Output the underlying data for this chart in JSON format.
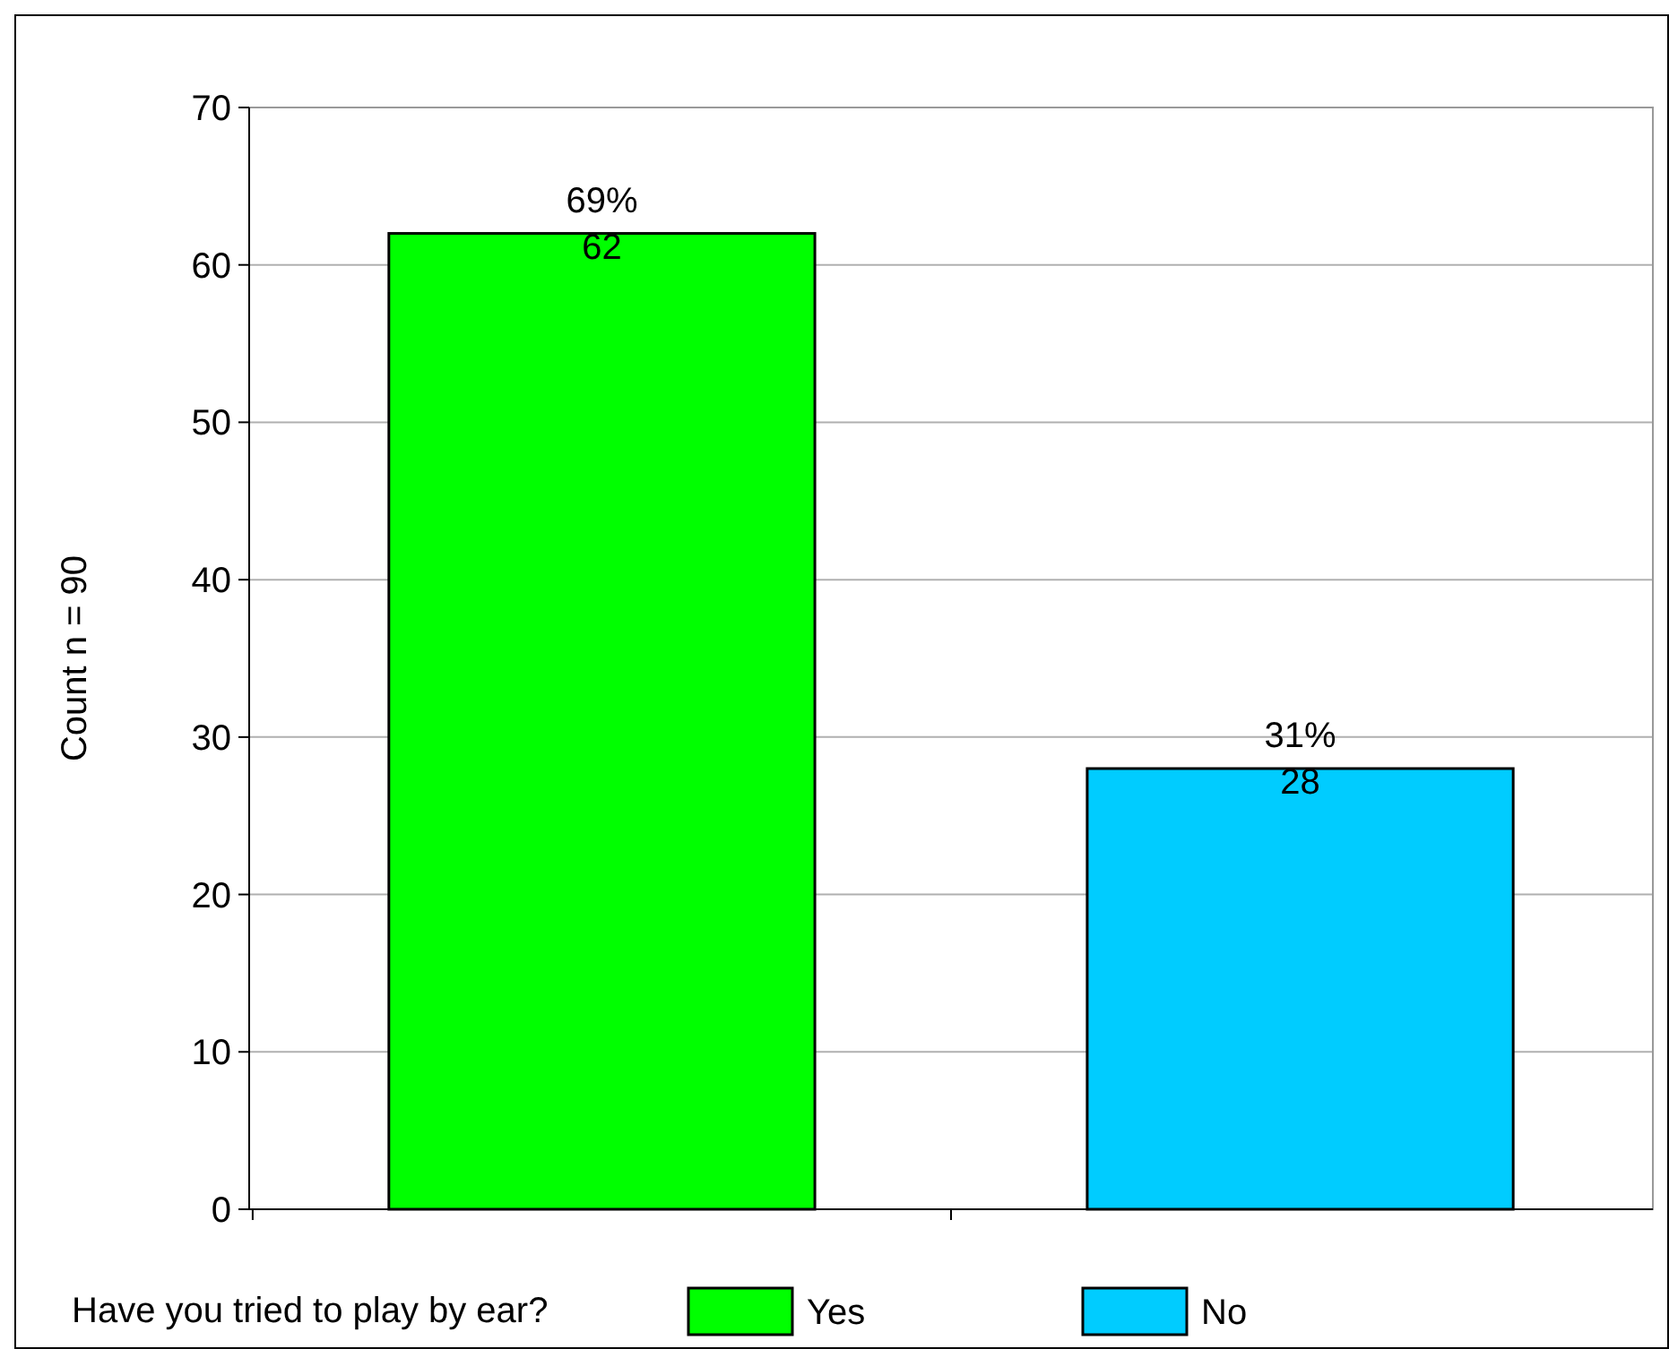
{
  "chart_data": {
    "type": "bar",
    "ylabel": "Count n = 90",
    "legend_title": "Have you tried to play by ear?",
    "categories": [
      null,
      null
    ],
    "series": [
      {
        "name": "Yes",
        "color": "#00ff00",
        "values": [
          62,
          null
        ],
        "value_labels": [
          "69%\n62",
          null
        ]
      },
      {
        "name": "No",
        "color": "#00ccff",
        "values": [
          null,
          28
        ],
        "value_labels": [
          null,
          "31%\n28"
        ]
      }
    ],
    "ylim": [
      0,
      70
    ],
    "yticks": [
      0,
      10,
      20,
      30,
      40,
      50,
      60,
      70
    ],
    "grid": "y",
    "legend": "bottom"
  }
}
